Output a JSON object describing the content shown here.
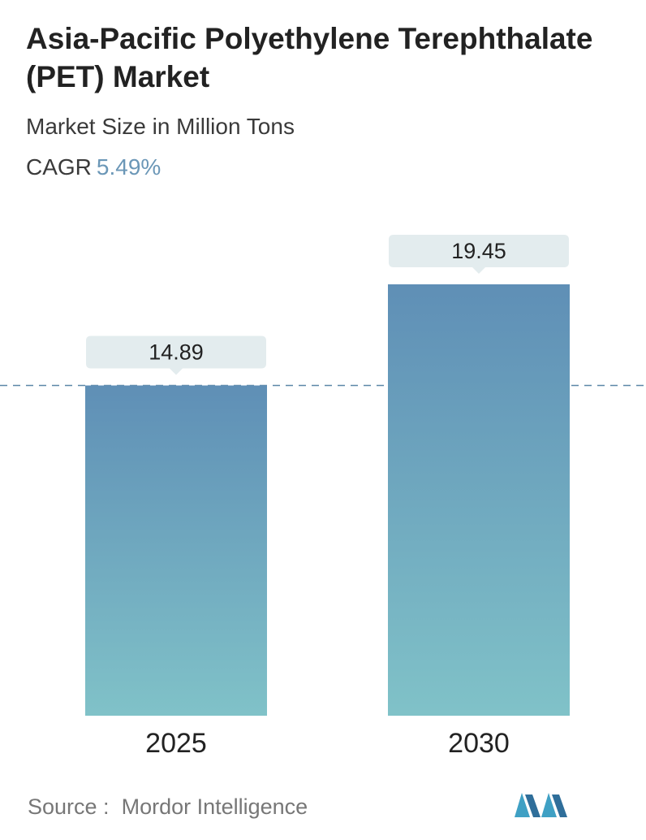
{
  "header": {
    "title": "Asia-Pacific Polyethylene Terephthalate (PET) Market",
    "subtitle": "Market Size in Million Tons",
    "cagr_label": "CAGR",
    "cagr_value": "5.49%"
  },
  "footer": {
    "source_label": "Source :",
    "source_name": "Mordor Intelligence",
    "logo_icon": "mordor-intelligence-logo-icon"
  },
  "colors": {
    "bar_top": "#5f8fb6",
    "bar_bottom": "#80c2c8",
    "label_bg": "#e3ecee",
    "dashed_line": "#5c87a8",
    "accent": "#6b97b7"
  },
  "chart_data": {
    "type": "bar",
    "categories": [
      "2025",
      "2030"
    ],
    "values": [
      14.89,
      19.45
    ],
    "data_labels": [
      "14.89",
      "19.45"
    ],
    "title": "Asia-Pacific Polyethylene Terephthalate (PET) Market",
    "xlabel": "",
    "ylabel": "",
    "ylim": [
      0,
      19.45
    ],
    "grid": false,
    "reference_line": 14.89
  }
}
